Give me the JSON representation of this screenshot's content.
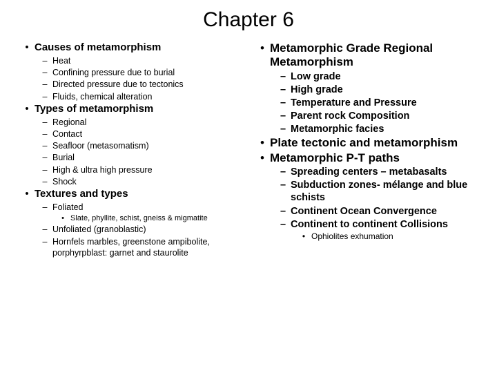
{
  "title": "Chapter 6",
  "left": {
    "s1": {
      "h": "Causes of metamorphism",
      "i1": "Heat",
      "i2": "Confining pressure due to burial",
      "i3": "Directed pressure due to tectonics",
      "i4": "Fluids, chemical alteration"
    },
    "s2": {
      "h": "Types of metamorphism",
      "i1": "Regional",
      "i2": "Contact",
      "i3": "Seafloor (metasomatism)",
      "i4": "Burial",
      "i5": "High & ultra high pressure",
      "i6": "Shock"
    },
    "s3": {
      "h": "Textures and types",
      "i1": "Foliated",
      "i1a": "Slate, phyllite, schist, gneiss & migmatite",
      "i2": "Unfoliated (granoblastic)",
      "i3": "Hornfels marbles, greenstone ampibolite, porphyrpblast: garnet and staurolite"
    }
  },
  "right": {
    "s1": {
      "h": "Metamorphic Grade Regional Metamorphism",
      "i1": "Low grade",
      "i2": " High grade",
      "i3": "Temperature and Pressure",
      "i4": "Parent rock Composition",
      "i5": "Metamorphic facies"
    },
    "s2": {
      "h": "Plate tectonic and metamorphism"
    },
    "s3": {
      "h": "Metamorphic P-T paths",
      "i1": "Spreading centers – metabasalts",
      "i2": "Subduction zones- mélange and blue schists",
      "i3": "Continent Ocean Convergence",
      "i4": "Continent to continent Collisions",
      "i4a": "Ophiolites exhumation"
    }
  }
}
